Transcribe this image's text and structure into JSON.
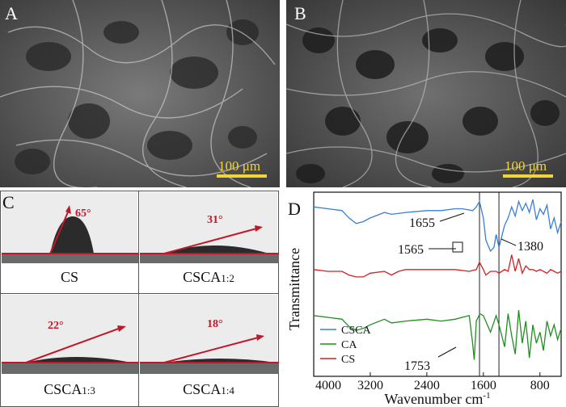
{
  "panel_a": {
    "letter": "A",
    "scale": "100 μm"
  },
  "panel_b": {
    "letter": "B",
    "scale": "100 μm"
  },
  "panel_c": {
    "letter": "C",
    "cells": [
      {
        "label": "CS",
        "angle": "65°"
      },
      {
        "label": "CSCA",
        "sub": "1:2",
        "angle": "31°"
      },
      {
        "label": "CSCA",
        "sub": "1:3",
        "angle": "22°"
      },
      {
        "label": "CSCA",
        "sub": "1:4",
        "angle": "18°"
      }
    ]
  },
  "chart_data": {
    "type": "line",
    "letter": "D",
    "xlabel": "Wavenumber cm",
    "xlabel_sup": "-1",
    "ylabel": "Transmittance",
    "xlim": [
      4000,
      500
    ],
    "x_ticks": [
      4000,
      3200,
      2400,
      1600,
      800
    ],
    "legend_position": "bottom-left",
    "series": [
      {
        "name": "CSCA",
        "color": "#3a7fd5",
        "x": [
          4000,
          3800,
          3600,
          3500,
          3400,
          3300,
          3200,
          3000,
          2900,
          2700,
          2400,
          2200,
          2000,
          1900,
          1750,
          1700,
          1655,
          1600,
          1565,
          1500,
          1450,
          1420,
          1380,
          1300,
          1250,
          1200,
          1150,
          1100,
          1050,
          1000,
          950,
          900,
          850,
          800,
          750,
          700,
          650,
          600,
          550,
          500
        ],
        "y": [
          92,
          91,
          90,
          86,
          83,
          84,
          86,
          89,
          88,
          89,
          90,
          90,
          91,
          91,
          90,
          92,
          95,
          86,
          74,
          68,
          70,
          77,
          70,
          82,
          86,
          92,
          87,
          95,
          90,
          94,
          89,
          96,
          85,
          91,
          88,
          93,
          80,
          86,
          78,
          84
        ]
      },
      {
        "name": "CA",
        "color": "#1f8f1f",
        "x": [
          4000,
          3800,
          3600,
          3500,
          3400,
          3300,
          3200,
          3000,
          2900,
          2700,
          2400,
          2200,
          2000,
          1900,
          1800,
          1753,
          1730,
          1700,
          1650,
          1600,
          1500,
          1420,
          1380,
          1300,
          1250,
          1200,
          1150,
          1100,
          1050,
          1000,
          950,
          900,
          850,
          800,
          750,
          700,
          650,
          600,
          550,
          500
        ],
        "y": [
          33,
          32,
          31,
          27,
          25,
          26,
          28,
          31,
          29,
          30,
          31,
          30,
          31,
          32,
          33,
          18,
          9,
          30,
          34,
          33,
          24,
          33,
          28,
          16,
          34,
          22,
          12,
          36,
          18,
          30,
          10,
          28,
          18,
          24,
          14,
          30,
          22,
          28,
          20,
          26
        ]
      },
      {
        "name": "CS",
        "color": "#d42020",
        "x": [
          4000,
          3800,
          3600,
          3500,
          3400,
          3300,
          3200,
          3000,
          2900,
          2800,
          2700,
          2400,
          2200,
          2000,
          1800,
          1700,
          1655,
          1600,
          1565,
          1500,
          1420,
          1380,
          1300,
          1250,
          1200,
          1150,
          1100,
          1050,
          1000,
          950,
          900,
          850,
          800,
          750,
          700,
          650,
          600,
          550,
          500
        ],
        "y": [
          58,
          57,
          57,
          55,
          54,
          54,
          56,
          57,
          55,
          57,
          58,
          58,
          58,
          58,
          57,
          58,
          62,
          58,
          55,
          57,
          57,
          56,
          58,
          57,
          66,
          57,
          64,
          56,
          60,
          58,
          58,
          57,
          58,
          57,
          56,
          58,
          57,
          56,
          57
        ]
      }
    ],
    "annotations": [
      "1655",
      "1565",
      "1380",
      "1753"
    ],
    "vlines": [
      1655,
      1380
    ]
  }
}
